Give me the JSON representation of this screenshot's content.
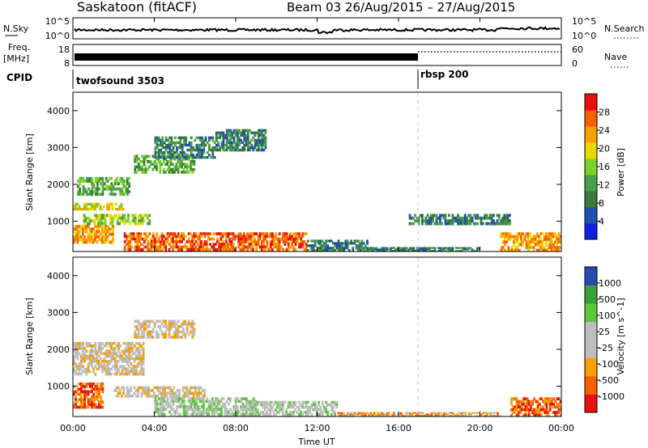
{
  "header": {
    "title": "Saskatoon (fitACF)",
    "beam_info": "Beam 03 26/Aug/2015 – 27/Aug/2015"
  },
  "strips": {
    "nsky_label": "N.Sky",
    "nsky_ticks": [
      "10^5",
      "10^0"
    ],
    "nsearch_label": "N.Search",
    "nsearch_ticks": [
      "10^5",
      "10^0"
    ],
    "freq_label_1": "Freq.",
    "freq_label_2": "[MHz]",
    "freq_ticks": [
      "18",
      "8"
    ],
    "nave_label": "Nave",
    "nave_ticks": [
      "60",
      "0"
    ],
    "cpid_label": "CPID",
    "cpid_segments": [
      {
        "name": "twofsound 3503",
        "start_hour": 0.0
      },
      {
        "name": "rbsp 200",
        "start_hour": 17.0
      }
    ]
  },
  "axes": {
    "x_ticks": [
      "00:00",
      "04:00",
      "08:00",
      "12:00",
      "16:00",
      "20:00",
      "00:00"
    ],
    "x_label": "Time UT",
    "y_label": "Slant Range [km]",
    "y_ticks": [
      "1000",
      "2000",
      "3000",
      "4000"
    ]
  },
  "colors": {
    "power": [
      "#1020e0",
      "#2050b0",
      "#3a7a3a",
      "#4aa04a",
      "#7bd02a",
      "#e8d800",
      "#f7a000",
      "#f76000",
      "#e81010"
    ],
    "velocity": [
      "#e81010",
      "#f76000",
      "#f7a000",
      "#bdbdbd",
      "#bdbdbd",
      "#5ac83a",
      "#3aa03a",
      "#2a4ab0"
    ],
    "power_trace": "#1a3fb0",
    "vel_trace": "#9e9e9e"
  },
  "chart_data": [
    {
      "type": "heatmap",
      "name": "Power",
      "xlabel": "Time UT",
      "ylabel": "Slant Range [km]",
      "xlim": [
        0,
        24
      ],
      "ylim": [
        180,
        4500
      ],
      "colorbar": {
        "label": "Power [dB]",
        "ticks": [
          "4",
          "8",
          "12",
          "16",
          "20",
          "24",
          "28"
        ],
        "tick_values": [
          4,
          8,
          12,
          16,
          20,
          24,
          28
        ],
        "range": [
          0,
          32
        ]
      },
      "echo_regions": [
        {
          "t0": 0.0,
          "t1": 2.5,
          "r0": 1300,
          "r1": 1500,
          "level": 20
        },
        {
          "t0": 0.2,
          "t1": 2.8,
          "r0": 1700,
          "r1": 2200,
          "level": 10
        },
        {
          "t0": 0.5,
          "t1": 3.8,
          "r0": 900,
          "r1": 1200,
          "level": 14
        },
        {
          "t0": 0.0,
          "t1": 2.0,
          "r0": 400,
          "r1": 900,
          "level": 22
        },
        {
          "t0": 3.0,
          "t1": 6.0,
          "r0": 2300,
          "r1": 2800,
          "level": 12
        },
        {
          "t0": 4.0,
          "t1": 7.0,
          "r0": 2700,
          "r1": 3300,
          "level": 8
        },
        {
          "t0": 7.0,
          "t1": 9.5,
          "r0": 2900,
          "r1": 3500,
          "level": 8
        },
        {
          "t0": 2.5,
          "t1": 11.5,
          "r0": 200,
          "r1": 700,
          "level": 26
        },
        {
          "t0": 11.5,
          "t1": 14.5,
          "r0": 180,
          "r1": 500,
          "level": 6
        },
        {
          "t0": 14.0,
          "t1": 20.0,
          "r0": 180,
          "r1": 300,
          "level": 6
        },
        {
          "t0": 16.5,
          "t1": 21.5,
          "r0": 900,
          "r1": 1200,
          "level": 6
        },
        {
          "t0": 21.0,
          "t1": 24.0,
          "r0": 180,
          "r1": 700,
          "level": 24
        }
      ]
    },
    {
      "type": "heatmap",
      "name": "Velocity",
      "xlabel": "Time UT",
      "ylabel": "Slant Range [km]",
      "xlim": [
        0,
        24
      ],
      "ylim": [
        180,
        4500
      ],
      "colorbar": {
        "label": "Velocity [m s^-1]",
        "ticks": [
          "-1000",
          "-500",
          "-100",
          "-25",
          "25",
          "100",
          "500",
          "1000"
        ],
        "tick_values": [
          -1000,
          -500,
          -100,
          -25,
          25,
          100,
          500,
          1000
        ]
      },
      "echo_regions": [
        {
          "t0": 0.0,
          "t1": 3.5,
          "r0": 1300,
          "r1": 2200,
          "level": 0
        },
        {
          "t0": 0.0,
          "t1": 1.5,
          "r0": 400,
          "r1": 1100,
          "level": -200
        },
        {
          "t0": 3.0,
          "t1": 6.0,
          "r0": 2300,
          "r1": 2800,
          "level": 0
        },
        {
          "t0": 2.0,
          "t1": 6.5,
          "r0": 700,
          "r1": 1000,
          "level": 0
        },
        {
          "t0": 4.0,
          "t1": 9.0,
          "r0": 200,
          "r1": 700,
          "level": 60
        },
        {
          "t0": 8.5,
          "t1": 13.0,
          "r0": 200,
          "r1": 600,
          "level": 60
        },
        {
          "t0": 13.0,
          "t1": 21.0,
          "r0": 180,
          "r1": 300,
          "level": -60
        },
        {
          "t0": 21.5,
          "t1": 24.0,
          "r0": 180,
          "r1": 700,
          "level": -400
        }
      ]
    }
  ]
}
